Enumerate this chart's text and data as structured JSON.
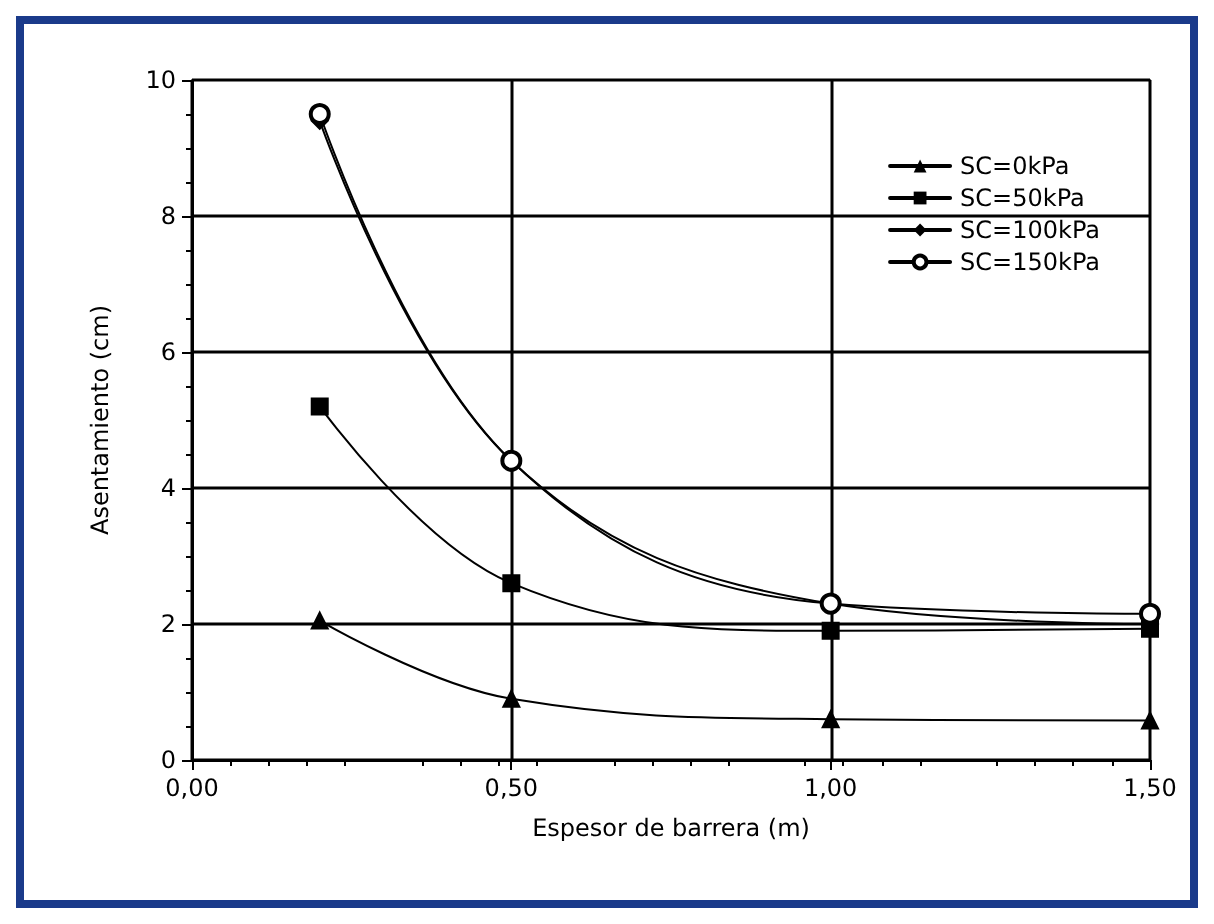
{
  "chart_data": {
    "type": "line",
    "xlabel": "Espesor de barrera (m)",
    "ylabel": "Asentamiento (cm)",
    "x": [
      0.2,
      0.5,
      1.0,
      1.5
    ],
    "series": [
      {
        "name": "SC=0kPa",
        "color": "#000000",
        "marker": "triangle",
        "values": [
          2.05,
          0.9,
          0.6,
          0.58
        ]
      },
      {
        "name": "SC=50kPa",
        "color": "#000000",
        "marker": "square",
        "values": [
          5.2,
          2.6,
          1.9,
          1.93
        ]
      },
      {
        "name": "SC=100kPa",
        "color": "#000000",
        "marker": "diamond",
        "values": [
          9.4,
          4.4,
          2.3,
          2.0
        ]
      },
      {
        "name": "SC=150kPa",
        "color": "#000000",
        "marker": "circle",
        "values": [
          9.5,
          4.4,
          2.3,
          2.15
        ]
      }
    ],
    "xlim": [
      0,
      1.5
    ],
    "xticks": [
      {
        "value": 0,
        "label": "0,00"
      },
      {
        "value": 0.5,
        "label": "0,50"
      },
      {
        "value": 1,
        "label": "1,00"
      },
      {
        "value": 1.5,
        "label": "1,50"
      }
    ],
    "ylim": [
      0,
      10
    ],
    "yticks": [
      0,
      2,
      4,
      6,
      8,
      10
    ],
    "grid": true,
    "legend": "top right",
    "line_style": "solid"
  }
}
